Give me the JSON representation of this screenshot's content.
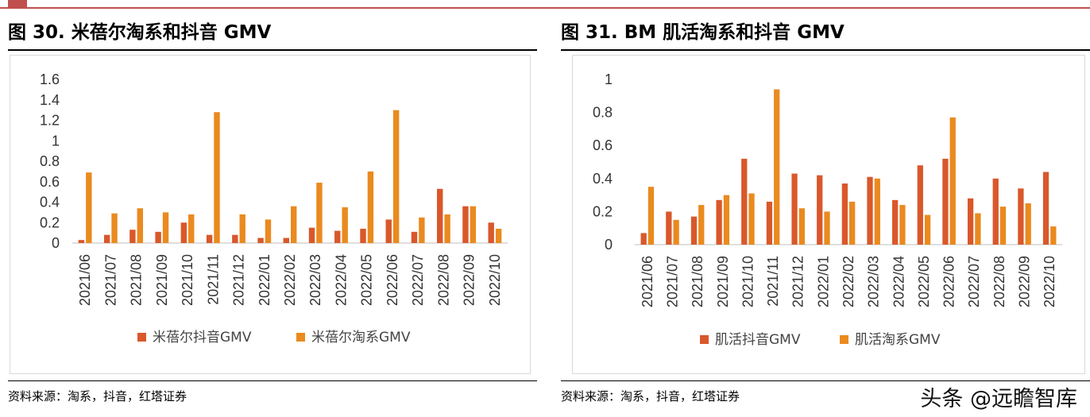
{
  "source_text": "资料来源：淘系，抖音，红塔证券",
  "watermark": "头条 @远瞻智库",
  "colors": {
    "douyin": "#d9582b",
    "taobao": "#ea8a1f",
    "accent_rule": "#c0504d"
  },
  "panels": [
    {
      "title": "图 30. 米蓓尔淘系和抖音 GMV",
      "chart_data": {
        "type": "bar",
        "categories": [
          "2021/06",
          "2021/07",
          "2021/08",
          "2021/09",
          "2021/10",
          "2021/11",
          "2021/12",
          "2022/01",
          "2022/02",
          "2022/03",
          "2022/04",
          "2022/05",
          "2022/06",
          "2022/07",
          "2022/08",
          "2022/09",
          "2022/10"
        ],
        "ylim": [
          0,
          1.6
        ],
        "yticks": [
          "0",
          "0.2",
          "0.4",
          "0.6",
          "0.8",
          "1",
          "1.2",
          "1.4",
          "1.6"
        ],
        "grid": false,
        "legend_position": "bottom",
        "series": [
          {
            "name": "米蓓尔抖音GMV",
            "color": "#d9582b",
            "values": [
              0.03,
              0.08,
              0.13,
              0.11,
              0.2,
              0.08,
              0.08,
              0.05,
              0.05,
              0.15,
              0.12,
              0.14,
              0.23,
              0.11,
              0.53,
              0.36,
              0.2
            ]
          },
          {
            "name": "米蓓尔淘系GMV",
            "color": "#ea8a1f",
            "values": [
              0.69,
              0.29,
              0.34,
              0.3,
              0.28,
              1.28,
              0.28,
              0.23,
              0.36,
              0.59,
              0.35,
              0.7,
              1.3,
              0.25,
              0.28,
              0.36,
              0.14
            ]
          }
        ]
      }
    },
    {
      "title": "图 31. BM 肌活淘系和抖音 GMV",
      "chart_data": {
        "type": "bar",
        "categories": [
          "2021/06",
          "2021/07",
          "2021/08",
          "2021/09",
          "2021/10",
          "2021/11",
          "2021/12",
          "2022/01",
          "2022/02",
          "2022/03",
          "2022/04",
          "2022/05",
          "2022/06",
          "2022/07",
          "2022/08",
          "2022/09",
          "2022/10"
        ],
        "ylim": [
          0,
          1
        ],
        "yticks": [
          "0",
          "0.2",
          "0.4",
          "0.6",
          "0.8",
          "1"
        ],
        "grid": false,
        "legend_position": "bottom",
        "series": [
          {
            "name": "肌活抖音GMV",
            "color": "#d9582b",
            "values": [
              0.07,
              0.2,
              0.17,
              0.27,
              0.52,
              0.26,
              0.43,
              0.42,
              0.37,
              0.41,
              0.27,
              0.48,
              0.52,
              0.28,
              0.4,
              0.34,
              0.44
            ]
          },
          {
            "name": "肌活淘系GMV",
            "color": "#ea8a1f",
            "values": [
              0.35,
              0.15,
              0.24,
              0.3,
              0.31,
              0.94,
              0.22,
              0.2,
              0.26,
              0.4,
              0.24,
              0.18,
              0.77,
              0.19,
              0.23,
              0.25,
              0.11
            ]
          }
        ]
      }
    }
  ]
}
